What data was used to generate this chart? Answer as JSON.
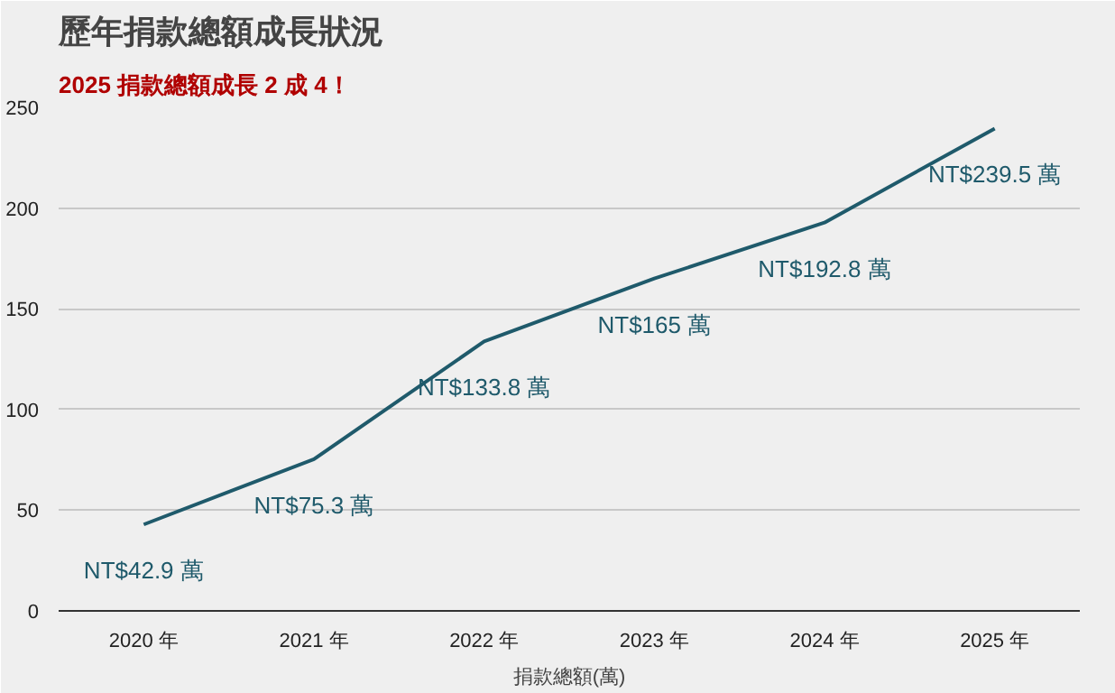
{
  "chart_data": {
    "type": "line",
    "title": "歷年捐款總額成長狀況",
    "subtitle": "2025 捐款總額成長 2 成 4！",
    "xlabel": "捐款總額(萬)",
    "categories": [
      "2020 年",
      "2021 年",
      "2022 年",
      "2023 年",
      "2024 年",
      "2025 年"
    ],
    "series": [
      {
        "color": "#1f5a6b",
        "values": [
          42.9,
          75.3,
          133.8,
          165,
          192.8,
          239.5
        ],
        "value_labels": [
          "NT$42.9 萬",
          "NT$75.3 萬",
          "NT$133.8 萬",
          "NT$165 萬",
          "NT$192.8 萬",
          "NT$239.5 萬"
        ]
      }
    ],
    "ylim": [
      0,
      250
    ],
    "yticks": [
      0,
      50,
      100,
      150,
      200,
      250
    ],
    "grid": "y",
    "marker": "none",
    "line_style": "solid"
  }
}
